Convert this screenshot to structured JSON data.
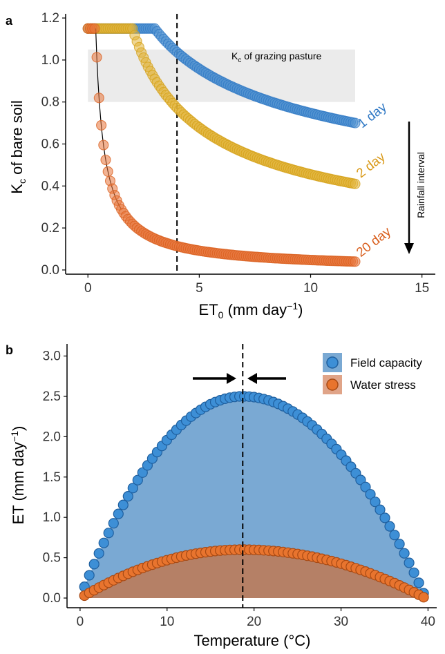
{
  "panels": {
    "a": {
      "label": "a",
      "kc_box_label": {
        "main": "K",
        "sub": "c",
        "rest": " of grazing pasture"
      },
      "rainfall_label": "Rainfall interval"
    },
    "b": {
      "label": "b"
    }
  },
  "chart_data": [
    {
      "type": "scatter",
      "panel": "a",
      "xlabel": {
        "main": "ET",
        "sub": "0",
        "rest": " (mm day",
        "sup": "−1",
        "close": ")"
      },
      "ylabel": {
        "main": "K",
        "sub": "c",
        "rest": " of bare soil"
      },
      "xlim": [
        -1,
        15.6
      ],
      "ylim": [
        -0.02,
        1.22
      ],
      "xticks": [
        0,
        5,
        10,
        15
      ],
      "yticks": [
        0.0,
        0.2,
        0.4,
        0.6,
        0.8,
        1.0,
        1.2
      ],
      "ytick_labels": [
        "0.0",
        "0.2",
        "0.4",
        "0.6",
        "0.8",
        "1.0",
        "1.2"
      ],
      "reference_band": {
        "x": [
          0,
          12
        ],
        "y": [
          0.8,
          1.05
        ]
      },
      "vline_x": 4,
      "x_range": [
        0,
        12
      ],
      "series": [
        {
          "name": "1 day",
          "kc_max": 1.15,
          "threshold": 3.0,
          "end_value": 0.7,
          "color": "#2f78c4",
          "fill": "#4c8fd0",
          "label_color": "#2f78c4"
        },
        {
          "name": "2 day",
          "kc_max": 1.15,
          "threshold": 2.0,
          "end_value": 0.41,
          "color": "#d4a017",
          "fill": "#e2b43a",
          "label_color": "#d99a1a"
        },
        {
          "name": "20 day",
          "kc_max": 1.15,
          "threshold": 0.35,
          "end_value": 0.04,
          "color": "#d95f1e",
          "fill": "#e8743b",
          "label_color": "#d95f1e"
        }
      ],
      "legend": "none"
    },
    {
      "type": "area",
      "panel": "b",
      "xlabel": "Temperature (°C)",
      "ylabel": {
        "main": "ET (mm day",
        "sup": "−1",
        "close": ")"
      },
      "xlim": [
        -1.5,
        41
      ],
      "ylim": [
        -0.12,
        3.15
      ],
      "xticks": [
        0,
        10,
        20,
        30,
        40
      ],
      "yticks": [
        0.0,
        0.5,
        1.0,
        1.5,
        2.0,
        2.5,
        3.0
      ],
      "ytick_labels": [
        "0.0",
        "0.5",
        "1.0",
        "1.5",
        "2.0",
        "2.5",
        "3.0"
      ],
      "vline_x": 18.7,
      "x_range": [
        0.5,
        39.5
      ],
      "series": [
        {
          "name": "Field capacity",
          "peak_x": 18.7,
          "peak_y": 2.5,
          "start_y": 0.14,
          "end_y": 0.06,
          "color": "#1f5f9e",
          "fill": "#3d8fd6",
          "area": "#7aa9d3"
        },
        {
          "name": "Water stress",
          "peak_x": 18.7,
          "peak_y": 0.6,
          "start_y": 0.03,
          "end_y": 0.01,
          "color": "#a84a14",
          "fill": "#e8742e",
          "area": "#b58066"
        }
      ],
      "legend": "top-right"
    }
  ]
}
